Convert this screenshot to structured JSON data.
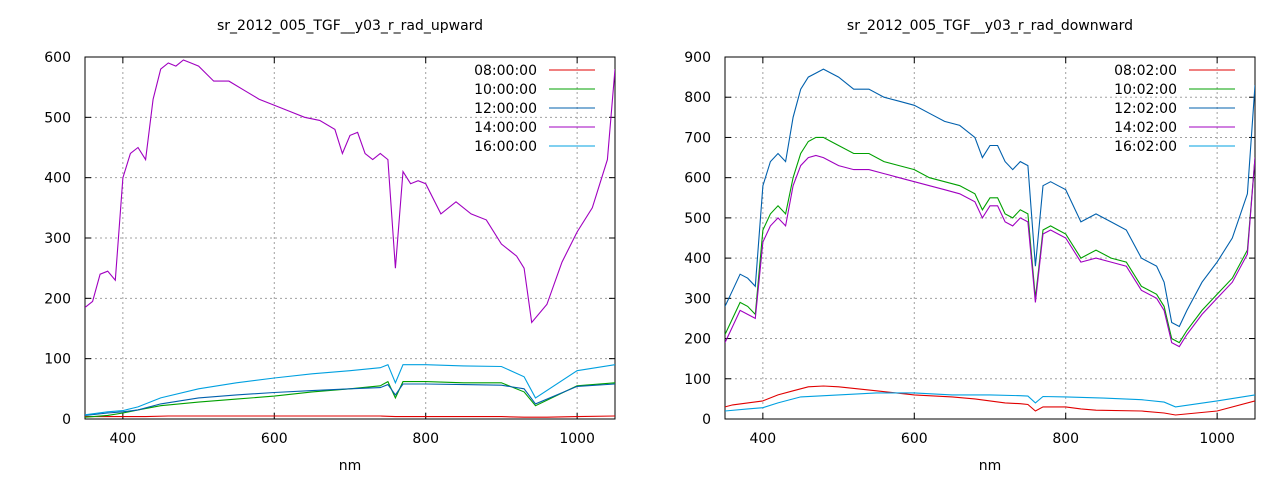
{
  "chart_data": [
    {
      "type": "line",
      "title": "sr_2012_005_TGF__y03_r_rad_upward",
      "xlabel": "nm",
      "ylabel": "",
      "xlim": [
        350,
        1050
      ],
      "ylim": [
        0,
        600
      ],
      "xticks": [
        400,
        600,
        800,
        1000
      ],
      "yticks": [
        0,
        100,
        200,
        300,
        400,
        500,
        600
      ],
      "grid": true,
      "legend_position": "top-right",
      "series": [
        {
          "name": "08:00:00",
          "color": "#e00000",
          "x": [
            350,
            380,
            400,
            430,
            460,
            500,
            550,
            600,
            650,
            700,
            740,
            760,
            780,
            800,
            850,
            900,
            930,
            960,
            1000,
            1050
          ],
          "y": [
            4,
            4,
            4,
            4,
            5,
            5,
            5,
            5,
            5,
            5,
            5,
            4,
            4,
            4,
            4,
            4,
            3,
            3,
            4,
            5
          ]
        },
        {
          "name": "10:00:00",
          "color": "#00a000",
          "x": [
            350,
            380,
            400,
            420,
            450,
            500,
            550,
            600,
            650,
            700,
            740,
            750,
            760,
            770,
            800,
            850,
            900,
            930,
            945,
            1000,
            1050
          ],
          "y": [
            3,
            6,
            10,
            15,
            22,
            28,
            33,
            38,
            45,
            50,
            55,
            62,
            35,
            62,
            62,
            60,
            60,
            45,
            22,
            55,
            60
          ]
        },
        {
          "name": "12:00:00",
          "color": "#0060ad",
          "x": [
            350,
            380,
            400,
            420,
            450,
            500,
            550,
            600,
            650,
            700,
            740,
            750,
            760,
            770,
            800,
            850,
            900,
            930,
            945,
            1000,
            1050
          ],
          "y": [
            6,
            10,
            12,
            15,
            25,
            35,
            40,
            44,
            47,
            50,
            52,
            57,
            40,
            58,
            58,
            57,
            56,
            50,
            25,
            54,
            58
          ]
        },
        {
          "name": "14:00:00",
          "color": "#a000c0",
          "x": [
            350,
            360,
            370,
            380,
            390,
            400,
            410,
            420,
            430,
            440,
            450,
            460,
            470,
            480,
            490,
            500,
            520,
            540,
            560,
            580,
            600,
            620,
            640,
            660,
            680,
            690,
            700,
            710,
            720,
            730,
            740,
            750,
            760,
            770,
            780,
            790,
            800,
            820,
            840,
            860,
            880,
            900,
            920,
            930,
            940,
            960,
            980,
            1000,
            1020,
            1040,
            1050
          ],
          "y": [
            185,
            195,
            240,
            245,
            230,
            400,
            440,
            450,
            430,
            530,
            580,
            590,
            585,
            595,
            590,
            585,
            560,
            560,
            545,
            530,
            520,
            510,
            500,
            495,
            480,
            440,
            470,
            475,
            440,
            430,
            440,
            430,
            250,
            410,
            390,
            395,
            390,
            340,
            360,
            340,
            330,
            290,
            270,
            250,
            160,
            190,
            260,
            310,
            350,
            430,
            580
          ]
        },
        {
          "name": "16:00:00",
          "color": "#00a0e0",
          "x": [
            350,
            380,
            400,
            420,
            450,
            500,
            550,
            600,
            650,
            700,
            740,
            750,
            760,
            770,
            800,
            850,
            900,
            930,
            945,
            1000,
            1050
          ],
          "y": [
            7,
            12,
            14,
            20,
            35,
            50,
            60,
            68,
            75,
            80,
            85,
            90,
            60,
            90,
            90,
            88,
            87,
            70,
            35,
            80,
            90
          ]
        }
      ]
    },
    {
      "type": "line",
      "title": "sr_2012_005_TGF__y03_r_rad_downward",
      "xlabel": "nm",
      "ylabel": "",
      "xlim": [
        350,
        1050
      ],
      "ylim": [
        0,
        900
      ],
      "xticks": [
        400,
        600,
        800,
        1000
      ],
      "yticks": [
        0,
        100,
        200,
        300,
        400,
        500,
        600,
        700,
        800,
        900
      ],
      "grid": true,
      "legend_position": "top-right",
      "series": [
        {
          "name": "08:02:00",
          "color": "#e00000",
          "x": [
            350,
            360,
            380,
            400,
            420,
            440,
            460,
            480,
            500,
            550,
            600,
            650,
            680,
            700,
            720,
            740,
            750,
            760,
            770,
            800,
            820,
            840,
            900,
            930,
            945,
            1000,
            1050
          ],
          "y": [
            30,
            35,
            40,
            45,
            60,
            70,
            80,
            82,
            80,
            70,
            60,
            55,
            50,
            45,
            40,
            38,
            36,
            20,
            30,
            30,
            25,
            22,
            20,
            15,
            10,
            20,
            45
          ]
        },
        {
          "name": "10:02:00",
          "color": "#00a000",
          "x": [
            350,
            360,
            370,
            380,
            390,
            400,
            410,
            420,
            430,
            440,
            450,
            460,
            470,
            480,
            490,
            500,
            520,
            540,
            560,
            580,
            600,
            620,
            640,
            660,
            680,
            690,
            700,
            710,
            720,
            730,
            740,
            750,
            760,
            770,
            780,
            790,
            800,
            820,
            840,
            860,
            880,
            900,
            920,
            930,
            940,
            950,
            960,
            980,
            1000,
            1020,
            1040,
            1050
          ],
          "y": [
            210,
            250,
            290,
            280,
            260,
            470,
            510,
            530,
            510,
            600,
            660,
            690,
            700,
            700,
            690,
            680,
            660,
            660,
            640,
            630,
            620,
            600,
            590,
            580,
            560,
            520,
            550,
            550,
            510,
            500,
            520,
            510,
            300,
            470,
            480,
            470,
            460,
            400,
            420,
            400,
            390,
            330,
            310,
            280,
            200,
            190,
            220,
            270,
            310,
            350,
            420,
            650
          ]
        },
        {
          "name": "12:02:00",
          "color": "#0060ad",
          "x": [
            350,
            360,
            370,
            380,
            390,
            400,
            410,
            420,
            430,
            440,
            450,
            460,
            470,
            480,
            490,
            500,
            520,
            540,
            560,
            580,
            600,
            620,
            640,
            660,
            680,
            690,
            700,
            710,
            720,
            730,
            740,
            750,
            760,
            770,
            780,
            790,
            800,
            820,
            840,
            860,
            880,
            900,
            920,
            930,
            940,
            950,
            960,
            980,
            1000,
            1020,
            1040,
            1050
          ],
          "y": [
            280,
            320,
            360,
            350,
            330,
            580,
            640,
            660,
            640,
            750,
            820,
            850,
            860,
            870,
            860,
            850,
            820,
            820,
            800,
            790,
            780,
            760,
            740,
            730,
            700,
            650,
            680,
            680,
            640,
            620,
            640,
            630,
            380,
            580,
            590,
            580,
            570,
            490,
            510,
            490,
            470,
            400,
            380,
            340,
            240,
            230,
            270,
            340,
            390,
            450,
            560,
            830
          ]
        },
        {
          "name": "14:02:00",
          "color": "#a000c0",
          "x": [
            350,
            360,
            370,
            380,
            390,
            400,
            410,
            420,
            430,
            440,
            450,
            460,
            470,
            480,
            490,
            500,
            520,
            540,
            560,
            580,
            600,
            620,
            640,
            660,
            680,
            690,
            700,
            710,
            720,
            730,
            740,
            750,
            760,
            770,
            780,
            790,
            800,
            820,
            840,
            860,
            880,
            900,
            920,
            930,
            940,
            950,
            960,
            980,
            1000,
            1020,
            1040,
            1050
          ],
          "y": [
            190,
            230,
            270,
            260,
            250,
            440,
            480,
            500,
            480,
            580,
            630,
            650,
            655,
            650,
            640,
            630,
            620,
            620,
            610,
            600,
            590,
            580,
            570,
            560,
            540,
            500,
            530,
            530,
            490,
            480,
            500,
            490,
            290,
            460,
            470,
            460,
            450,
            390,
            400,
            390,
            380,
            320,
            300,
            270,
            190,
            180,
            210,
            260,
            300,
            340,
            410,
            650
          ]
        },
        {
          "name": "16:02:00",
          "color": "#00a0e0",
          "x": [
            350,
            380,
            400,
            420,
            450,
            500,
            550,
            600,
            650,
            700,
            740,
            750,
            760,
            770,
            800,
            850,
            900,
            930,
            945,
            1000,
            1050
          ],
          "y": [
            20,
            25,
            28,
            40,
            55,
            60,
            65,
            65,
            60,
            60,
            58,
            57,
            40,
            56,
            55,
            52,
            48,
            42,
            30,
            45,
            60
          ]
        }
      ]
    }
  ]
}
